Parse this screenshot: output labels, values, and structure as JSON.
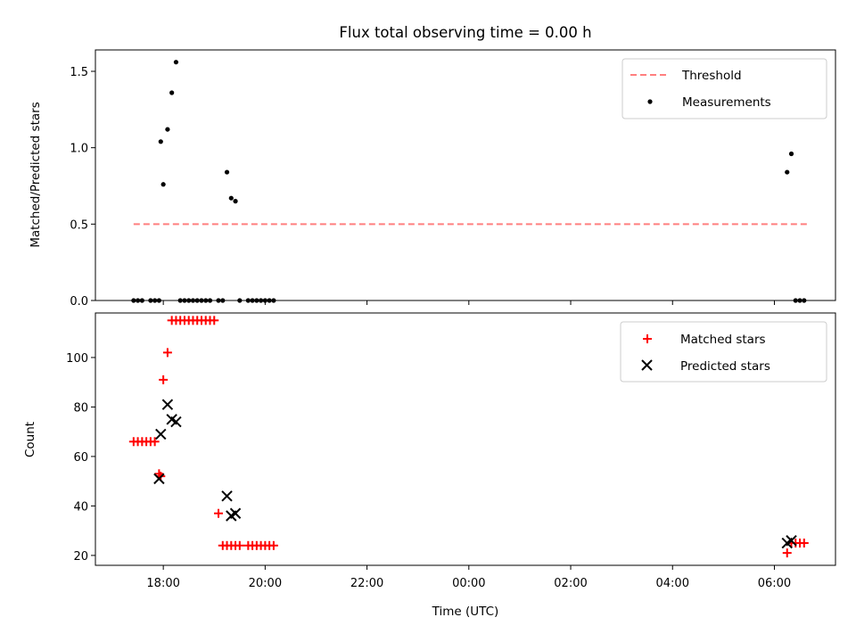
{
  "chart_data": [
    {
      "type": "line",
      "title": "Flux total observing time = 0.00 h",
      "xlabel": "",
      "ylabel": "Matched/Predicted stars",
      "ylim": [
        0,
        1.64
      ],
      "yticks": [
        0.0,
        0.5,
        1.0,
        1.5
      ],
      "ytick_labels": [
        "0.0",
        "0.5",
        "1.0",
        "1.5"
      ],
      "grid": false,
      "legend_position": "upper-right",
      "series": [
        {
          "name": "Threshold",
          "style": "dashed-line",
          "color": "#ff7f7f",
          "x": [
            "2023-01-01 17:25",
            "2023-01-02 06:40"
          ],
          "y": [
            0.5,
            0.5
          ]
        },
        {
          "name": "Measurements",
          "style": "dot",
          "color": "#000000",
          "x": [
            "2023-01-01 17:25",
            "2023-01-01 17:30",
            "2023-01-01 17:35",
            "2023-01-01 17:45",
            "2023-01-01 17:50",
            "2023-01-01 17:55",
            "2023-01-01 17:57",
            "2023-01-01 18:00",
            "2023-01-01 18:05",
            "2023-01-01 18:10",
            "2023-01-01 18:15",
            "2023-01-01 18:20",
            "2023-01-01 18:25",
            "2023-01-01 18:30",
            "2023-01-01 18:35",
            "2023-01-01 18:40",
            "2023-01-01 18:45",
            "2023-01-01 18:50",
            "2023-01-01 18:55",
            "2023-01-01 19:05",
            "2023-01-01 19:10",
            "2023-01-01 19:15",
            "2023-01-01 19:20",
            "2023-01-01 19:25",
            "2023-01-01 19:30",
            "2023-01-01 19:40",
            "2023-01-01 19:45",
            "2023-01-01 19:50",
            "2023-01-01 19:55",
            "2023-01-01 20:00",
            "2023-01-01 20:05",
            "2023-01-01 20:10",
            "2023-01-02 06:15",
            "2023-01-02 06:20",
            "2023-01-02 06:25",
            "2023-01-02 06:30",
            "2023-01-02 06:35"
          ],
          "y": [
            0,
            0,
            0,
            0,
            0,
            0,
            1.04,
            0.76,
            1.12,
            1.36,
            1.56,
            0,
            0,
            0,
            0,
            0,
            0,
            0,
            0,
            0,
            0,
            0.84,
            0.67,
            0.65,
            0,
            0,
            0,
            0,
            0,
            0,
            0,
            0,
            0.84,
            0.96,
            0,
            0,
            0
          ]
        }
      ]
    },
    {
      "type": "scatter",
      "title": "",
      "xlabel": "Time (UTC)",
      "ylabel": "Count",
      "ylim": [
        16,
        118
      ],
      "yticks": [
        20,
        40,
        60,
        80,
        100
      ],
      "ytick_labels": [
        "20",
        "40",
        "60",
        "80",
        "100"
      ],
      "xlim": [
        "2023-01-01 16:40",
        "2023-01-02 07:12"
      ],
      "xtick_labels": [
        "18:00",
        "20:00",
        "22:00",
        "00:00",
        "02:00",
        "04:00",
        "06:00"
      ],
      "grid": false,
      "legend_position": "upper-right",
      "series": [
        {
          "name": "Matched stars",
          "marker": "plus",
          "color": "#ff0000",
          "x": [
            "2023-01-01 17:25",
            "2023-01-01 17:30",
            "2023-01-01 17:35",
            "2023-01-01 17:40",
            "2023-01-01 17:45",
            "2023-01-01 17:50",
            "2023-01-01 17:55",
            "2023-01-01 17:57",
            "2023-01-01 18:00",
            "2023-01-01 18:05",
            "2023-01-01 18:10",
            "2023-01-01 18:15",
            "2023-01-01 18:20",
            "2023-01-01 18:25",
            "2023-01-01 18:30",
            "2023-01-01 18:35",
            "2023-01-01 18:40",
            "2023-01-01 18:45",
            "2023-01-01 18:50",
            "2023-01-01 18:55",
            "2023-01-01 19:00",
            "2023-01-01 19:05",
            "2023-01-01 19:10",
            "2023-01-01 19:15",
            "2023-01-01 19:20",
            "2023-01-01 19:25",
            "2023-01-01 19:30",
            "2023-01-01 19:40",
            "2023-01-01 19:45",
            "2023-01-01 19:50",
            "2023-01-01 19:55",
            "2023-01-01 20:00",
            "2023-01-01 20:05",
            "2023-01-01 20:10",
            "2023-01-02 06:15",
            "2023-01-02 06:20",
            "2023-01-02 06:25",
            "2023-01-02 06:30",
            "2023-01-02 06:35"
          ],
          "y": [
            66,
            66,
            66,
            66,
            66,
            66,
            53,
            52,
            91,
            102,
            115,
            115,
            115,
            115,
            115,
            115,
            115,
            115,
            115,
            115,
            115,
            37,
            24,
            24,
            24,
            24,
            24,
            24,
            24,
            24,
            24,
            24,
            24,
            24,
            21,
            25,
            25,
            25,
            25
          ]
        },
        {
          "name": "Predicted stars",
          "marker": "x",
          "color": "#000000",
          "x": [
            "2023-01-01 17:55",
            "2023-01-01 17:57",
            "2023-01-01 18:05",
            "2023-01-01 18:10",
            "2023-01-01 18:15",
            "2023-01-01 19:15",
            "2023-01-01 19:20",
            "2023-01-01 19:25",
            "2023-01-02 06:15",
            "2023-01-02 06:20"
          ],
          "y": [
            51,
            69,
            81,
            75,
            74,
            44,
            36,
            37,
            25,
            26
          ]
        }
      ]
    }
  ]
}
